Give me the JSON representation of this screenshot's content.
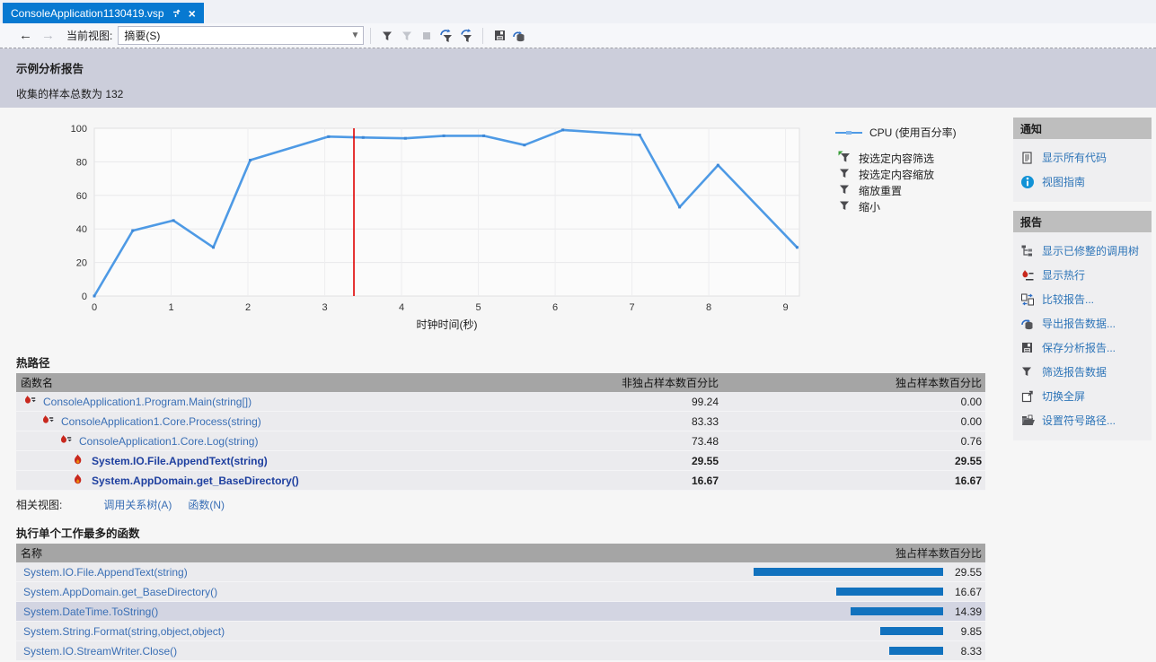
{
  "window": {
    "tab_title": "ConsoleApplication1130419.vsp"
  },
  "toolbar": {
    "back": "←",
    "forward": "→",
    "current_view_label": "当前视图:",
    "current_view_value": "摘要(S)"
  },
  "header": {
    "title": "示例分析报告",
    "subtitle": "收集的样本总数为 132"
  },
  "chart_data": {
    "type": "line",
    "title": "",
    "xlabel": "时钟时间(秒)",
    "ylabel": "",
    "xlim": [
      0,
      9.18
    ],
    "ylim": [
      0,
      100
    ],
    "x_ticks": [
      0,
      1,
      2,
      3,
      4,
      5,
      6,
      7,
      8,
      9
    ],
    "y_ticks": [
      0,
      20,
      40,
      60,
      80,
      100
    ],
    "grid": true,
    "legend_position": "right",
    "selection_marker_x": 3.38,
    "marker_color": "#E00000",
    "legend": [
      {
        "label": "CPU (使用百分率)",
        "color": "#4E9AE5"
      }
    ],
    "series": [
      {
        "name": "CPU (使用百分率)",
        "color": "#4E9AE5",
        "points": [
          [
            0,
            0
          ],
          [
            0.5,
            39
          ],
          [
            1.03,
            45
          ],
          [
            1.55,
            29
          ],
          [
            2.03,
            81
          ],
          [
            3.05,
            95
          ],
          [
            3.5,
            94.5
          ],
          [
            4.05,
            94
          ],
          [
            4.55,
            95.5
          ],
          [
            5.07,
            95.5
          ],
          [
            5.6,
            90
          ],
          [
            6.1,
            99
          ],
          [
            7.1,
            96
          ],
          [
            7.62,
            53
          ],
          [
            8.12,
            78
          ],
          [
            9.15,
            29
          ]
        ]
      }
    ]
  },
  "chart_actions": [
    {
      "label": "按选定内容筛选",
      "icon": "filter-by-selection-icon"
    },
    {
      "label": "按选定内容缩放",
      "icon": "zoom-by-selection-icon"
    },
    {
      "label": "缩放重置",
      "icon": "zoom-reset-icon"
    },
    {
      "label": "缩小",
      "icon": "zoom-out-icon"
    }
  ],
  "hot_path": {
    "title": "热路径",
    "columns": [
      "函数名",
      "非独占样本数百分比",
      "独占样本数百分比"
    ],
    "rows": [
      {
        "name": "ConsoleApplication1.Program.Main(string[])",
        "inclusive": "99.24",
        "exclusive": "0.00"
      },
      {
        "name": "ConsoleApplication1.Core.Process(string)",
        "inclusive": "83.33",
        "exclusive": "0.00"
      },
      {
        "name": "ConsoleApplication1.Core.Log(string)",
        "inclusive": "73.48",
        "exclusive": "0.76"
      },
      {
        "name": "System.IO.File.AppendText(string)",
        "inclusive": "29.55",
        "exclusive": "29.55"
      },
      {
        "name": "System.AppDomain.get_BaseDirectory()",
        "inclusive": "16.67",
        "exclusive": "16.67"
      }
    ],
    "related_label": "相关视图:",
    "related_links": [
      "调用关系树(A)",
      "函数(N)"
    ]
  },
  "most_work": {
    "title": "执行单个工作最多的函数",
    "columns": [
      "名称",
      "独占样本数百分比"
    ],
    "bar_color": "#1272BE",
    "rows": [
      {
        "name": "System.IO.File.AppendText(string)",
        "value": 29.55,
        "display": "29.55"
      },
      {
        "name": "System.AppDomain.get_BaseDirectory()",
        "value": 16.67,
        "display": "16.67"
      },
      {
        "name": "System.DateTime.ToString()",
        "value": 14.39,
        "display": "14.39"
      },
      {
        "name": "System.String.Format(string,object,object)",
        "value": 9.85,
        "display": "9.85"
      },
      {
        "name": "System.IO.StreamWriter.Close()",
        "value": 8.33,
        "display": "8.33"
      }
    ]
  },
  "sidebar": {
    "sections": [
      {
        "title": "通知",
        "items": [
          {
            "label": "显示所有代码",
            "icon": "show-all-code-icon"
          },
          {
            "label": "视图指南",
            "icon": "info-icon"
          }
        ]
      },
      {
        "title": "报告",
        "items": [
          {
            "label": "显示已修整的调用树",
            "icon": "call-tree-icon"
          },
          {
            "label": "显示热行",
            "icon": "hot-lines-icon"
          },
          {
            "label": "比较报告...",
            "icon": "compare-reports-icon"
          },
          {
            "label": "导出报告数据...",
            "icon": "export-data-icon"
          },
          {
            "label": "保存分析报告...",
            "icon": "save-report-icon"
          },
          {
            "label": "筛选报告数据",
            "icon": "filter-data-icon"
          },
          {
            "label": "切换全屏",
            "icon": "fullscreen-icon"
          },
          {
            "label": "设置符号路径...",
            "icon": "symbol-path-icon"
          }
        ]
      }
    ]
  },
  "colors": {
    "tab_active": "#0779D1",
    "header_band": "#CCCEDB",
    "table_header": "#A5A5A5",
    "row": "#EBEBEE",
    "row_selected": "#D3D5E2",
    "link": "#3A6FB5",
    "sidebar_link": "#2E75B8",
    "bar": "#1272BE",
    "chart_line": "#4E9AE5",
    "marker": "#E00000"
  }
}
